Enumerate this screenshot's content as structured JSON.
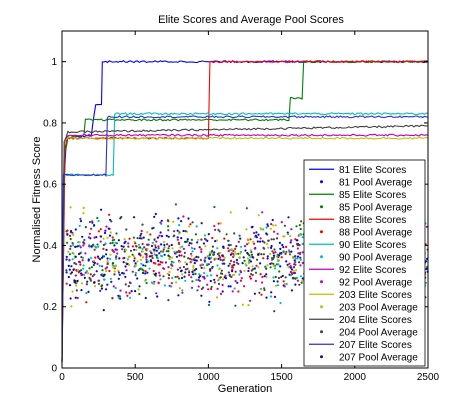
{
  "chart_data": {
    "type": "line",
    "title": "Elite Scores and Average Pool Scores",
    "xlabel": "Generation",
    "ylabel": "Normalised Fitness Score",
    "xlim": [
      0,
      2500
    ],
    "ylim": [
      0,
      1.1
    ],
    "xticks": [
      0,
      500,
      1000,
      1500,
      2000,
      2500
    ],
    "yticks": [
      0,
      0.2,
      0.4,
      0.6,
      0.8,
      1
    ],
    "grid": false,
    "legend_position": "lower-right",
    "pool_average_band": {
      "y_center": 0.36,
      "y_spread": 0.09,
      "x_start": 30,
      "x_end": 2500
    },
    "series": [
      {
        "name": "81 Elite Scores",
        "kind": "line",
        "color": "#0000ff",
        "points": [
          [
            0,
            0.02
          ],
          [
            15,
            0.62
          ],
          [
            30,
            0.75
          ],
          [
            200,
            0.76
          ],
          [
            230,
            0.86
          ],
          [
            270,
            0.86
          ],
          [
            275,
            1.0
          ],
          [
            2500,
            1.0
          ]
        ]
      },
      {
        "name": "81 Pool Average",
        "kind": "scatter",
        "color": "#0000ff"
      },
      {
        "name": "85 Elite Scores",
        "kind": "line",
        "color": "#008000",
        "points": [
          [
            0,
            0.02
          ],
          [
            20,
            0.7
          ],
          [
            40,
            0.75
          ],
          [
            150,
            0.76
          ],
          [
            160,
            0.81
          ],
          [
            1550,
            0.81
          ],
          [
            1560,
            0.88
          ],
          [
            1640,
            0.88
          ],
          [
            1650,
            1.0
          ],
          [
            2500,
            1.0
          ]
        ]
      },
      {
        "name": "85 Pool Average",
        "kind": "scatter",
        "color": "#008000"
      },
      {
        "name": "88 Elite Scores",
        "kind": "line",
        "color": "#ff0000",
        "points": [
          [
            0,
            0.02
          ],
          [
            20,
            0.72
          ],
          [
            40,
            0.75
          ],
          [
            1000,
            0.75
          ],
          [
            1010,
            1.0
          ],
          [
            2500,
            1.0
          ]
        ]
      },
      {
        "name": "88 Pool Average",
        "kind": "scatter",
        "color": "#ff0000"
      },
      {
        "name": "90 Elite Scores",
        "kind": "line",
        "color": "#00bfbf",
        "points": [
          [
            0,
            0.02
          ],
          [
            10,
            0.63
          ],
          [
            350,
            0.63
          ],
          [
            360,
            0.83
          ],
          [
            2500,
            0.83
          ]
        ]
      },
      {
        "name": "90 Pool Average",
        "kind": "scatter",
        "color": "#00bfbf"
      },
      {
        "name": "92 Elite Scores",
        "kind": "line",
        "color": "#bf00bf",
        "points": [
          [
            0,
            0.02
          ],
          [
            15,
            0.74
          ],
          [
            40,
            0.76
          ],
          [
            2500,
            0.76
          ]
        ]
      },
      {
        "name": "92 Pool Average",
        "kind": "scatter",
        "color": "#bf00bf"
      },
      {
        "name": "203 Elite Scores",
        "kind": "line",
        "color": "#bfbf00",
        "points": [
          [
            0,
            0.02
          ],
          [
            15,
            0.74
          ],
          [
            40,
            0.75
          ],
          [
            2500,
            0.75
          ]
        ]
      },
      {
        "name": "203 Pool Average",
        "kind": "scatter",
        "color": "#bfbf00"
      },
      {
        "name": "204 Elite Scores",
        "kind": "line",
        "color": "#404040",
        "points": [
          [
            0,
            0.02
          ],
          [
            15,
            0.74
          ],
          [
            40,
            0.77
          ],
          [
            2500,
            0.79
          ]
        ]
      },
      {
        "name": "204 Pool Average",
        "kind": "scatter",
        "color": "#404040"
      },
      {
        "name": "207 Elite Scores",
        "kind": "line",
        "color": "#3030c8",
        "points": [
          [
            0,
            0.02
          ],
          [
            10,
            0.63
          ],
          [
            300,
            0.63
          ],
          [
            310,
            0.82
          ],
          [
            2500,
            0.82
          ]
        ]
      },
      {
        "name": "207 Pool Average",
        "kind": "scatter",
        "color": "#1010a0"
      }
    ]
  }
}
